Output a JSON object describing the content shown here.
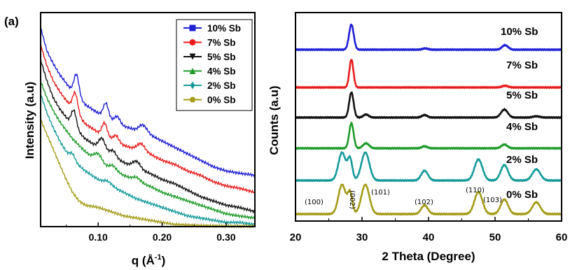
{
  "chart_data": [
    {
      "type": "line",
      "panel_label": "(a)",
      "xlabel": "q (Å",
      "xlabel_sup": "-1",
      "xlabel_close": ")",
      "ylabel": "Intensity (a.u)",
      "xlim": [
        0.01,
        0.345
      ],
      "ylim": [
        0,
        1
      ],
      "xticks": [
        0.1,
        0.2,
        0.3
      ],
      "xtick_labels": [
        "0.10",
        "0.20",
        "0.30"
      ],
      "legend_placement": "top-right",
      "series": [
        {
          "name": "10% Sb",
          "color": "#1f1fd6",
          "marker": "square",
          "base": [
            [
              0.01,
              0.93
            ],
            [
              0.02,
              0.82
            ],
            [
              0.03,
              0.76
            ],
            [
              0.04,
              0.71
            ],
            [
              0.05,
              0.67
            ],
            [
              0.06,
              0.63
            ],
            [
              0.08,
              0.57
            ],
            [
              0.1,
              0.53
            ],
            [
              0.12,
              0.5
            ],
            [
              0.14,
              0.47
            ],
            [
              0.16,
              0.45
            ],
            [
              0.18,
              0.43
            ],
            [
              0.2,
              0.4
            ],
            [
              0.22,
              0.37
            ],
            [
              0.24,
              0.34
            ],
            [
              0.26,
              0.31
            ],
            [
              0.28,
              0.28
            ],
            [
              0.3,
              0.26
            ],
            [
              0.32,
              0.25
            ],
            [
              0.345,
              0.24
            ]
          ],
          "peaks": [
            [
              0.066,
              0.1,
              0.004
            ],
            [
              0.112,
              0.065,
              0.004
            ],
            [
              0.13,
              0.03,
              0.004
            ],
            [
              0.17,
              0.035,
              0.006
            ]
          ]
        },
        {
          "name": "7% Sb",
          "color": "#e81c1c",
          "marker": "circle",
          "base": [
            [
              0.01,
              0.85
            ],
            [
              0.02,
              0.75
            ],
            [
              0.03,
              0.68
            ],
            [
              0.04,
              0.63
            ],
            [
              0.05,
              0.59
            ],
            [
              0.06,
              0.55
            ],
            [
              0.08,
              0.48
            ],
            [
              0.1,
              0.44
            ],
            [
              0.12,
              0.41
            ],
            [
              0.14,
              0.38
            ],
            [
              0.16,
              0.36
            ],
            [
              0.18,
              0.34
            ],
            [
              0.2,
              0.31
            ],
            [
              0.22,
              0.29
            ],
            [
              0.24,
              0.26
            ],
            [
              0.26,
              0.24
            ],
            [
              0.28,
              0.21
            ],
            [
              0.3,
              0.19
            ],
            [
              0.32,
              0.18
            ],
            [
              0.345,
              0.16
            ]
          ],
          "peaks": [
            [
              0.064,
              0.09,
              0.004
            ],
            [
              0.11,
              0.06,
              0.004
            ],
            [
              0.128,
              0.028,
              0.004
            ],
            [
              0.167,
              0.035,
              0.006
            ]
          ]
        },
        {
          "name": "5% Sb",
          "color": "#111111",
          "marker": "triangle-down",
          "base": [
            [
              0.01,
              0.78
            ],
            [
              0.02,
              0.68
            ],
            [
              0.03,
              0.6
            ],
            [
              0.04,
              0.55
            ],
            [
              0.05,
              0.51
            ],
            [
              0.06,
              0.47
            ],
            [
              0.08,
              0.41
            ],
            [
              0.1,
              0.37
            ],
            [
              0.12,
              0.33
            ],
            [
              0.14,
              0.3
            ],
            [
              0.16,
              0.27
            ],
            [
              0.18,
              0.25
            ],
            [
              0.2,
              0.22
            ],
            [
              0.22,
              0.2
            ],
            [
              0.24,
              0.17
            ],
            [
              0.26,
              0.14
            ],
            [
              0.28,
              0.12
            ],
            [
              0.3,
              0.1
            ],
            [
              0.32,
              0.09
            ],
            [
              0.345,
              0.07
            ]
          ],
          "peaks": [
            [
              0.062,
              0.08,
              0.004
            ],
            [
              0.106,
              0.055,
              0.005
            ],
            [
              0.123,
              0.03,
              0.005
            ],
            [
              0.16,
              0.035,
              0.006
            ]
          ]
        },
        {
          "name": "4% Sb",
          "color": "#1e9b2a",
          "marker": "triangle-up",
          "base": [
            [
              0.01,
              0.68
            ],
            [
              0.02,
              0.6
            ],
            [
              0.03,
              0.54
            ],
            [
              0.04,
              0.49
            ],
            [
              0.05,
              0.45
            ],
            [
              0.06,
              0.41
            ],
            [
              0.08,
              0.35
            ],
            [
              0.1,
              0.3
            ],
            [
              0.12,
              0.27
            ],
            [
              0.14,
              0.24
            ],
            [
              0.16,
              0.21
            ],
            [
              0.18,
              0.19
            ],
            [
              0.2,
              0.16
            ],
            [
              0.22,
              0.14
            ],
            [
              0.24,
              0.12
            ],
            [
              0.26,
              0.1
            ],
            [
              0.28,
              0.08
            ],
            [
              0.3,
              0.06
            ],
            [
              0.32,
              0.05
            ],
            [
              0.345,
              0.04
            ]
          ],
          "peaks": [
            [
              0.1,
              0.04,
              0.006
            ],
            [
              0.123,
              0.02,
              0.005
            ],
            [
              0.16,
              0.02,
              0.006
            ]
          ]
        },
        {
          "name": "2% Sb",
          "color": "#159a9a",
          "marker": "diamond",
          "base": [
            [
              0.01,
              0.62
            ],
            [
              0.02,
              0.53
            ],
            [
              0.03,
              0.46
            ],
            [
              0.04,
              0.4
            ],
            [
              0.05,
              0.35
            ],
            [
              0.06,
              0.31
            ],
            [
              0.08,
              0.26
            ],
            [
              0.1,
              0.22
            ],
            [
              0.12,
              0.19
            ],
            [
              0.14,
              0.16
            ],
            [
              0.16,
              0.13
            ],
            [
              0.18,
              0.11
            ],
            [
              0.2,
              0.09
            ],
            [
              0.22,
              0.07
            ],
            [
              0.24,
              0.05
            ],
            [
              0.26,
              0.04
            ],
            [
              0.28,
              0.03
            ],
            [
              0.3,
              0.02
            ],
            [
              0.32,
              0.02
            ],
            [
              0.345,
              0.01
            ]
          ],
          "peaks": [
            [
              0.06,
              0.03,
              0.004
            ],
            [
              0.115,
              0.015,
              0.006
            ]
          ]
        },
        {
          "name": "0% Sb",
          "color": "#a49b18",
          "marker": "hexagon",
          "base": [
            [
              0.01,
              0.5
            ],
            [
              0.02,
              0.43
            ],
            [
              0.03,
              0.36
            ],
            [
              0.04,
              0.29
            ],
            [
              0.05,
              0.22
            ],
            [
              0.06,
              0.16
            ],
            [
              0.07,
              0.12
            ],
            [
              0.08,
              0.1
            ],
            [
              0.1,
              0.09
            ],
            [
              0.12,
              0.07
            ],
            [
              0.14,
              0.05
            ],
            [
              0.16,
              0.04
            ],
            [
              0.18,
              0.03
            ],
            [
              0.2,
              0.02
            ],
            [
              0.22,
              0.01
            ],
            [
              0.26,
              0.005
            ],
            [
              0.3,
              0.003
            ],
            [
              0.345,
              0.002
            ]
          ],
          "peaks": []
        }
      ]
    },
    {
      "type": "line",
      "xlabel": "2 Theta (Degree)",
      "ylabel": "Counts (a.u)",
      "xlim": [
        20,
        60
      ],
      "xticks": [
        20,
        30,
        40,
        50,
        60
      ],
      "xtick_labels": [
        "20",
        "30",
        "40",
        "50",
        "60"
      ],
      "series": [
        {
          "name": "10% Sb",
          "color": "#1f1fd6",
          "peaks": [
            [
              28.4,
              1.0,
              0.35
            ],
            [
              39.5,
              0.05,
              0.4
            ],
            [
              51.5,
              0.18,
              0.45
            ]
          ]
        },
        {
          "name": "7% Sb",
          "color": "#e81c1c",
          "peaks": [
            [
              28.4,
              1.0,
              0.3
            ],
            [
              51.5,
              0.06,
              0.45
            ]
          ]
        },
        {
          "name": "5% Sb",
          "color": "#111111",
          "peaks": [
            [
              28.4,
              1.0,
              0.33
            ],
            [
              30.6,
              0.12,
              0.4
            ],
            [
              39.4,
              0.1,
              0.4
            ],
            [
              51.4,
              0.32,
              0.5
            ],
            [
              56.2,
              0.05,
              0.5
            ]
          ]
        },
        {
          "name": "4% Sb",
          "color": "#1e9b2a",
          "peaks": [
            [
              28.4,
              1.0,
              0.33
            ],
            [
              30.6,
              0.2,
              0.45
            ],
            [
              39.4,
              0.08,
              0.4
            ],
            [
              51.4,
              0.15,
              0.45
            ]
          ]
        },
        {
          "name": "2% Sb",
          "color": "#159a9a",
          "peaks": [
            [
              27.0,
              1.0,
              0.55
            ],
            [
              28.2,
              0.75,
              0.35
            ],
            [
              30.5,
              1.0,
              0.6
            ],
            [
              39.4,
              0.35,
              0.5
            ],
            [
              47.5,
              0.75,
              0.6
            ],
            [
              51.4,
              0.55,
              0.55
            ],
            [
              56.2,
              0.4,
              0.6
            ]
          ]
        },
        {
          "name": "0% Sb",
          "color": "#a49b18",
          "peaks": [
            [
              27.0,
              1.0,
              0.55
            ],
            [
              28.2,
              0.7,
              0.35
            ],
            [
              30.5,
              1.0,
              0.6
            ],
            [
              39.4,
              0.3,
              0.5
            ],
            [
              47.5,
              0.75,
              0.6
            ],
            [
              51.4,
              0.5,
              0.55
            ],
            [
              56.2,
              0.4,
              0.6
            ]
          ]
        }
      ],
      "labels": [
        "10% Sb",
        "7% Sb",
        "5% Sb",
        "4% Sb",
        "2% Sb",
        "0% Sb"
      ],
      "hkl_annotations": [
        {
          "text": "(100)",
          "x": 27.0
        },
        {
          "text": "(002)",
          "x": 28.2
        },
        {
          "text": "(101)",
          "x": 30.5
        },
        {
          "text": "(102)",
          "x": 39.4
        },
        {
          "text": "(110)",
          "x": 47.5
        },
        {
          "text": "(103)",
          "x": 51.4
        }
      ]
    }
  ]
}
